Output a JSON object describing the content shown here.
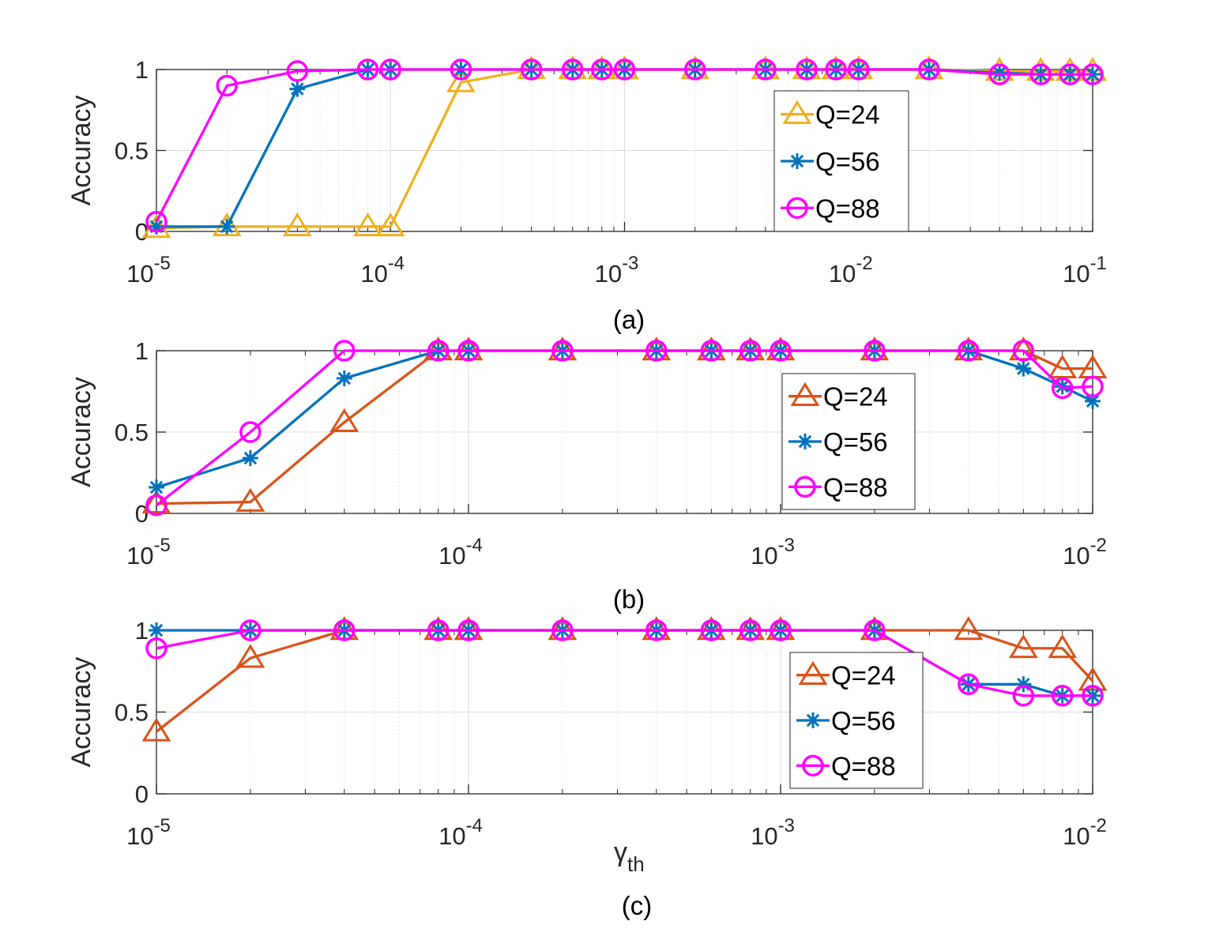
{
  "figure": {
    "captions": [
      "(a)",
      "(b)",
      "(c)"
    ],
    "xlabel_main": "γ",
    "xlabel_sub": "th"
  },
  "colors": {
    "Q=24 (a)": "#EDB120",
    "Q=24 (b,c)": "#D95319",
    "Q=56": "#0072BD",
    "Q=88": "#FF00FF",
    "axes": "#262626",
    "grid": "#dcdcdc"
  },
  "chart_data": [
    {
      "type": "line",
      "panel": "(a)",
      "xscale": "log",
      "xlim": [
        1e-05,
        0.1
      ],
      "ylim": [
        0,
        1
      ],
      "ylabel": "Accuracy",
      "xlabel": "",
      "x_ticks": [
        {
          "base": "10",
          "exp": "-5"
        },
        {
          "base": "10",
          "exp": "-4"
        },
        {
          "base": "10",
          "exp": "-3"
        },
        {
          "base": "10",
          "exp": "-2"
        },
        {
          "base": "10",
          "exp": "-1"
        }
      ],
      "y_ticks": [
        "0",
        "0.5",
        "1"
      ],
      "grid": true,
      "legend_position": "right-middle",
      "x": [
        1e-05,
        2e-05,
        4e-05,
        8e-05,
        0.0001,
        0.0002,
        0.0004,
        0.0006,
        0.0008,
        0.001,
        0.002,
        0.004,
        0.006,
        0.008,
        0.01,
        0.02,
        0.04,
        0.06,
        0.08,
        0.1
      ],
      "series": [
        {
          "name": "Q=24",
          "marker": "triangle",
          "color": "#EDB120",
          "values": [
            0.02,
            0.03,
            0.03,
            0.03,
            0.03,
            0.92,
            1.0,
            1.0,
            1.0,
            1.0,
            1.0,
            1.0,
            1.0,
            1.0,
            1.0,
            1.0,
            0.99,
            0.99,
            0.99,
            0.99
          ]
        },
        {
          "name": "Q=56",
          "marker": "star",
          "color": "#0072BD",
          "values": [
            0.03,
            0.03,
            0.88,
            1.0,
            1.0,
            1.0,
            1.0,
            1.0,
            1.0,
            1.0,
            1.0,
            1.0,
            1.0,
            1.0,
            1.0,
            1.0,
            0.98,
            0.97,
            0.97,
            0.97
          ]
        },
        {
          "name": "Q=88",
          "marker": "circle",
          "color": "#FF00FF",
          "values": [
            0.06,
            0.9,
            0.99,
            1.0,
            1.0,
            1.0,
            1.0,
            1.0,
            1.0,
            1.0,
            1.0,
            1.0,
            1.0,
            1.0,
            1.0,
            1.0,
            0.97,
            0.97,
            0.97,
            0.97
          ]
        }
      ]
    },
    {
      "type": "line",
      "panel": "(b)",
      "xscale": "log",
      "xlim": [
        1e-05,
        0.01
      ],
      "ylim": [
        0,
        1
      ],
      "ylabel": "Accuracy",
      "xlabel": "",
      "x_ticks": [
        {
          "base": "10",
          "exp": "-5"
        },
        {
          "base": "10",
          "exp": "-4"
        },
        {
          "base": "10",
          "exp": "-3"
        },
        {
          "base": "10",
          "exp": "-2"
        }
      ],
      "y_ticks": [
        "0",
        "0.5",
        "1"
      ],
      "grid": true,
      "legend_position": "right-middle",
      "x": [
        1e-05,
        2e-05,
        4e-05,
        8e-05,
        0.0001,
        0.0002,
        0.0004,
        0.0006,
        0.0008,
        0.001,
        0.002,
        0.004,
        0.006,
        0.008,
        0.01
      ],
      "series": [
        {
          "name": "Q=24",
          "marker": "triangle",
          "color": "#D95319",
          "values": [
            0.06,
            0.07,
            0.56,
            1.0,
            1.0,
            1.0,
            1.0,
            1.0,
            1.0,
            1.0,
            1.0,
            1.0,
            1.0,
            0.89,
            0.89
          ]
        },
        {
          "name": "Q=56",
          "marker": "star",
          "color": "#0072BD",
          "values": [
            0.16,
            0.34,
            0.83,
            1.0,
            1.0,
            1.0,
            1.0,
            1.0,
            1.0,
            1.0,
            1.0,
            1.0,
            0.89,
            0.78,
            0.69
          ]
        },
        {
          "name": "Q=88",
          "marker": "circle",
          "color": "#FF00FF",
          "values": [
            0.05,
            0.5,
            1.0,
            1.0,
            1.0,
            1.0,
            1.0,
            1.0,
            1.0,
            1.0,
            1.0,
            1.0,
            1.0,
            0.77,
            0.78
          ]
        }
      ]
    },
    {
      "type": "line",
      "panel": "(c)",
      "xscale": "log",
      "xlim": [
        1e-05,
        0.01
      ],
      "ylim": [
        0,
        1
      ],
      "ylabel": "Accuracy",
      "xlabel": "γth",
      "x_ticks": [
        {
          "base": "10",
          "exp": "-5"
        },
        {
          "base": "10",
          "exp": "-4"
        },
        {
          "base": "10",
          "exp": "-3"
        },
        {
          "base": "10",
          "exp": "-2"
        }
      ],
      "y_ticks": [
        "0",
        "0.5",
        "1"
      ],
      "grid": true,
      "legend_position": "right-middle",
      "x": [
        1e-05,
        2e-05,
        4e-05,
        8e-05,
        0.0001,
        0.0002,
        0.0004,
        0.0006,
        0.0008,
        0.001,
        0.002,
        0.004,
        0.006,
        0.008,
        0.01
      ],
      "series": [
        {
          "name": "Q=24",
          "marker": "triangle",
          "color": "#D95319",
          "values": [
            0.38,
            0.83,
            1.0,
            1.0,
            1.0,
            1.0,
            1.0,
            1.0,
            1.0,
            1.0,
            1.0,
            1.0,
            0.89,
            0.89,
            0.69
          ]
        },
        {
          "name": "Q=56",
          "marker": "star",
          "color": "#0072BD",
          "values": [
            1.0,
            1.0,
            1.0,
            1.0,
            1.0,
            1.0,
            1.0,
            1.0,
            1.0,
            1.0,
            1.0,
            0.67,
            0.67,
            0.6,
            0.6
          ]
        },
        {
          "name": "Q=88",
          "marker": "circle",
          "color": "#FF00FF",
          "values": [
            0.89,
            1.0,
            1.0,
            1.0,
            1.0,
            1.0,
            1.0,
            1.0,
            1.0,
            1.0,
            1.0,
            0.67,
            0.6,
            0.6,
            0.6
          ]
        }
      ]
    }
  ]
}
